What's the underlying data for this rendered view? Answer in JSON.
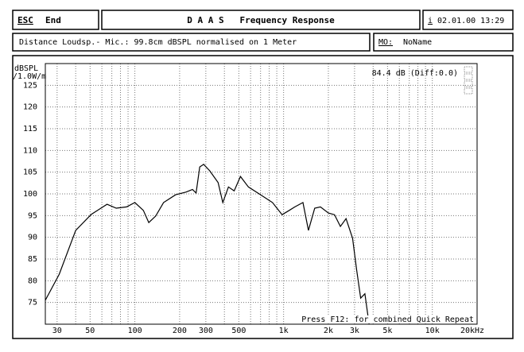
{
  "header": {
    "esc": "ESC",
    "end": "End",
    "title": "D A A S   Frequency Response",
    "info_icon": "i",
    "datetime": "02.01.00 13:29"
  },
  "info": {
    "measurement": "Distance Loudsp.- Mic.: 99.8cm dBSPL normalised on 1 Meter",
    "mo_label": "MO:",
    "mo_name": "NoName"
  },
  "chart_data": {
    "type": "line",
    "ylabel": [
      "dBSPL",
      "/1.0W/m"
    ],
    "annotations": [
      "84.4 dB (Diff:0.0)",
      "Press F12: for combined Quick Repeat"
    ],
    "x": [
      25,
      31,
      40,
      51,
      65,
      75,
      88,
      100,
      114,
      124,
      138,
      156,
      188,
      220,
      244,
      258,
      273,
      290,
      319,
      363,
      390,
      426,
      465,
      513,
      580,
      700,
      842,
      977,
      1080,
      1190,
      1350,
      1470,
      1620,
      1770,
      2000,
      2200,
      2410,
      2630,
      2910,
      3100,
      3300,
      3520,
      3760
    ],
    "values": [
      75.5,
      81.5,
      91.6,
      95.3,
      97.6,
      96.7,
      97,
      98,
      96.2,
      93.4,
      94.9,
      98,
      99.8,
      100.4,
      101,
      100.2,
      106.2,
      106.8,
      105.3,
      102.6,
      98,
      101.6,
      100.7,
      104,
      101.6,
      99.8,
      98,
      95.2,
      96.1,
      97,
      98,
      91.6,
      96.7,
      97,
      95.6,
      95.2,
      92.5,
      94.3,
      89.8,
      82.4,
      76,
      77,
      70
    ],
    "color": "#000000",
    "log_x": true,
    "grid": true,
    "xlim": [
      25,
      20000
    ],
    "ylim": [
      70,
      130
    ],
    "xticks": [
      30,
      50,
      100,
      200,
      300,
      500,
      {
        "value": 1000,
        "label": "1k"
      },
      {
        "value": 2000,
        "label": "2k"
      },
      {
        "value": 3000,
        "label": "3k"
      },
      {
        "value": 5000,
        "label": "5k"
      },
      {
        "value": 10000,
        "label": "10k"
      },
      {
        "value": 20000,
        "label": "20kHz"
      }
    ],
    "xminor": [
      40,
      60,
      70,
      80,
      90,
      400,
      600,
      700,
      800,
      900,
      4000,
      6000,
      7000,
      8000,
      9000
    ],
    "yticks": [
      75,
      80,
      85,
      90,
      95,
      100,
      105,
      110,
      115,
      120,
      125
    ]
  }
}
